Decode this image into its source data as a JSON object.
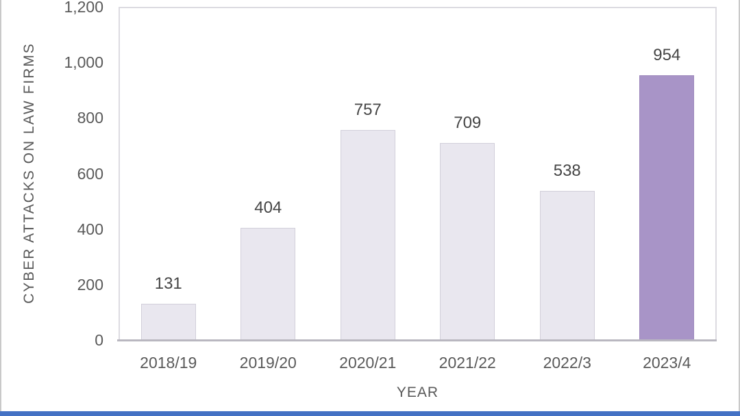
{
  "page": {
    "background": "#ffffff",
    "left_edge_color": "#c9c9c9",
    "right_edge_color": "#c9c9c9",
    "bottom_bar_color": "#4472c4"
  },
  "chart_data": {
    "type": "bar",
    "title": "",
    "categories": [
      "2018/19",
      "2019/20",
      "2020/21",
      "2021/22",
      "2022/3",
      "2023/4"
    ],
    "values": [
      131,
      404,
      757,
      709,
      538,
      954
    ],
    "data_labels": [
      "131",
      "404",
      "757",
      "709",
      "538",
      "954"
    ],
    "xlabel": "YEAR",
    "ylabel": "CYBER ATTACKS ON LAW FIRMS",
    "ylim": [
      0,
      1200
    ],
    "ytick_step": 200,
    "ytick_labels": [
      "0",
      "200",
      "400",
      "600",
      "800",
      "1,000",
      "1,200"
    ],
    "grid": false,
    "legend": false,
    "highlight_index": 5,
    "colors": {
      "bar_fill": "#e9e7ef",
      "bar_border": "#d2cfda",
      "highlight_fill": "#a894c7",
      "highlight_border": "#9d89bc",
      "tick_text": "#595959",
      "category_text": "#595959",
      "axis_title_text": "#595959",
      "data_label_text": "#454545",
      "axis_line": "#b9b7c0",
      "plot_border": "#dcdbe1"
    }
  }
}
